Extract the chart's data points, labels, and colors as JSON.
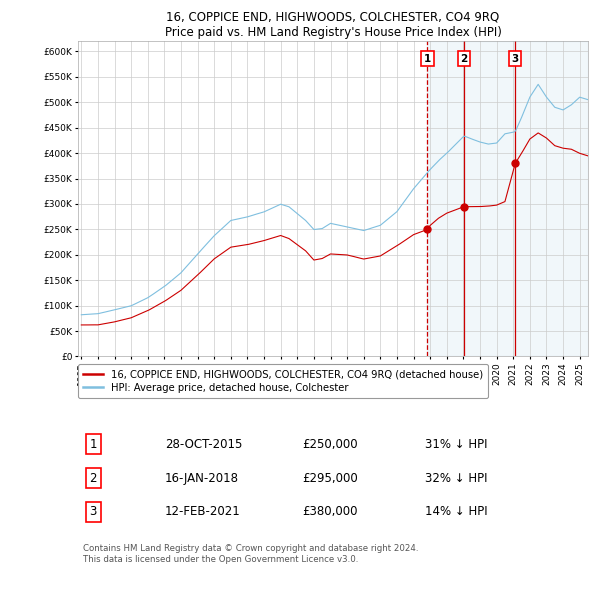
{
  "title": "16, COPPICE END, HIGHWOODS, COLCHESTER, CO4 9RQ",
  "subtitle": "Price paid vs. HM Land Registry's House Price Index (HPI)",
  "background_color": "#ffffff",
  "grid_color": "#cccccc",
  "hpi_color": "#7fbfdf",
  "price_color": "#cc0000",
  "vline_color_solid": "#cc0000",
  "vline_color_dashed": "#cc0000",
  "ylim": [
    0,
    620000
  ],
  "yticks": [
    0,
    50000,
    100000,
    150000,
    200000,
    250000,
    300000,
    350000,
    400000,
    450000,
    500000,
    550000,
    600000
  ],
  "sale_dates_decimal": [
    2015.827,
    2018.042,
    2021.117
  ],
  "sale_prices": [
    250000,
    295000,
    380000
  ],
  "sale_labels": [
    "1",
    "2",
    "3"
  ],
  "legend_entries": [
    "16, COPPICE END, HIGHWOODS, COLCHESTER, CO4 9RQ (detached house)",
    "HPI: Average price, detached house, Colchester"
  ],
  "table_data": [
    [
      "1",
      "28-OCT-2015",
      "£250,000",
      "31% ↓ HPI"
    ],
    [
      "2",
      "16-JAN-2018",
      "£295,000",
      "32% ↓ HPI"
    ],
    [
      "3",
      "12-FEB-2021",
      "£380,000",
      "14% ↓ HPI"
    ]
  ],
  "footnote": "Contains HM Land Registry data © Crown copyright and database right 2024.\nThis data is licensed under the Open Government Licence v3.0.",
  "xmin": 1994.8,
  "xmax": 2025.5,
  "xtick_years": [
    1995,
    1996,
    1997,
    1998,
    1999,
    2000,
    2001,
    2002,
    2003,
    2004,
    2005,
    2006,
    2007,
    2008,
    2009,
    2010,
    2011,
    2012,
    2013,
    2014,
    2015,
    2016,
    2017,
    2018,
    2019,
    2020,
    2021,
    2022,
    2023,
    2024,
    2025
  ]
}
